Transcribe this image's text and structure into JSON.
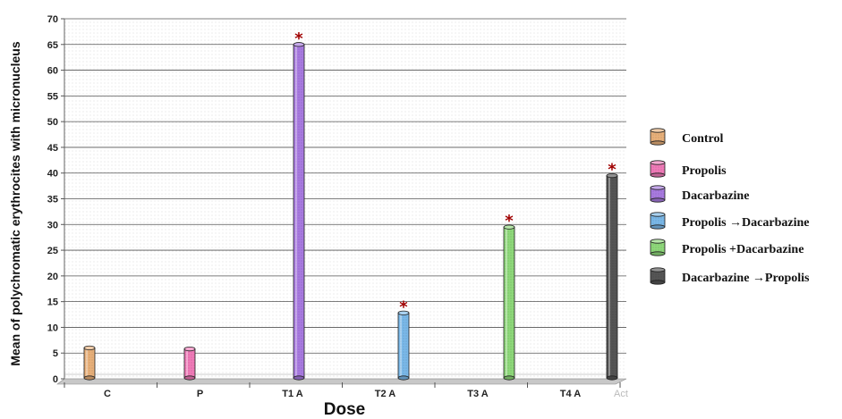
{
  "chart_data": {
    "type": "bar",
    "xlabel": "Dose",
    "ylabel": "Mean of polychromatic erythrocites with micronucleus",
    "ylim": [
      0,
      70
    ],
    "ytick_step": 5,
    "grid": true,
    "legend_position": "right",
    "categories": [
      "C",
      "P",
      "T1 A",
      "T2 A",
      "T3 A",
      "T4 A"
    ],
    "series": [
      {
        "name": "Control",
        "color": "#e8b07a",
        "values": [
          6,
          null,
          null,
          null,
          null,
          null
        ]
      },
      {
        "name": "Propolis",
        "color": "#f07ab8",
        "values": [
          null,
          5.8,
          null,
          null,
          null,
          null
        ]
      },
      {
        "name": "Dacarbazine",
        "color": "#a87ae0",
        "values": [
          null,
          null,
          65,
          null,
          null,
          null
        ]
      },
      {
        "name": "Propolis →Dacarbazine",
        "color": "#7ab8e8",
        "values": [
          null,
          null,
          null,
          12.8,
          null,
          null
        ]
      },
      {
        "name": "Propolis +Dacarbazine",
        "color": "#8ed87a",
        "values": [
          null,
          null,
          null,
          null,
          29.5,
          null
        ]
      },
      {
        "name": "Dacarbazine →Propolis",
        "color": "#555555",
        "values": [
          null,
          null,
          null,
          null,
          null,
          39.5
        ]
      }
    ],
    "significance_marks": [
      {
        "category": "T1 A",
        "label": "*"
      },
      {
        "category": "T2 A",
        "label": "*"
      },
      {
        "category": "T3 A",
        "label": "*"
      },
      {
        "category": "T4 A",
        "label": "*"
      }
    ],
    "extra_tick_label": "Act"
  }
}
